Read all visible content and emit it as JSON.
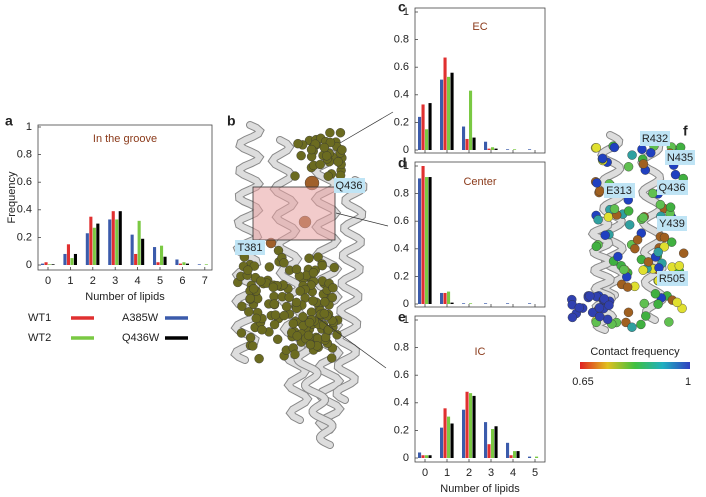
{
  "chart_data": [
    {
      "type": "bar",
      "panel": "a",
      "title": "In the groove",
      "xlabel": "Number of lipids",
      "ylabel": "Frequency",
      "categories": [
        "0",
        "1",
        "2",
        "3",
        "4",
        "5",
        "6",
        "7"
      ],
      "ylim": [
        0,
        1
      ],
      "yticks": [
        0,
        0.2,
        0.4,
        0.6,
        0.8,
        1
      ],
      "legend": true,
      "series": [
        {
          "name": "A385W",
          "color": "#3b5bab",
          "values": [
            0.01,
            0.08,
            0.23,
            0.33,
            0.22,
            0.13,
            0.04,
            0.005
          ]
        },
        {
          "name": "WT1",
          "color": "#e03030",
          "values": [
            0.02,
            0.15,
            0.35,
            0.39,
            0.08,
            0.02,
            0.01,
            0
          ]
        },
        {
          "name": "WT2",
          "color": "#7ac943",
          "values": [
            0.005,
            0.05,
            0.27,
            0.33,
            0.32,
            0.14,
            0.02,
            0.005
          ]
        },
        {
          "name": "Q436W",
          "color": "#000000",
          "values": [
            0.005,
            0.08,
            0.3,
            0.39,
            0.19,
            0.06,
            0.01,
            0
          ]
        }
      ]
    },
    {
      "type": "bar",
      "panel": "c",
      "title": "EC",
      "categories": [
        null,
        null,
        null,
        null,
        null,
        null
      ],
      "ylim": [
        0,
        1
      ],
      "yticks": [
        0,
        0.2,
        0.4,
        0.6,
        0.8,
        1
      ],
      "series": [
        {
          "name": "A385W",
          "color": "#3b5bab",
          "values": [
            0.24,
            0.51,
            0.17,
            0.06,
            0.005,
            0.005
          ]
        },
        {
          "name": "WT1",
          "color": "#e03030",
          "values": [
            0.33,
            0.67,
            0.08,
            0.01,
            0,
            0
          ]
        },
        {
          "name": "WT2",
          "color": "#7ac943",
          "values": [
            0.15,
            0.53,
            0.43,
            0.02,
            0.005,
            0
          ]
        },
        {
          "name": "Q436W",
          "color": "#000000",
          "values": [
            0.34,
            0.56,
            0.09,
            0.01,
            0,
            0
          ]
        }
      ]
    },
    {
      "type": "bar",
      "panel": "d",
      "title": "Center",
      "categories": [
        null,
        null,
        null,
        null,
        null,
        null
      ],
      "ylim": [
        0,
        1
      ],
      "yticks": [
        0,
        0.2,
        0.4,
        0.6,
        0.8,
        1
      ],
      "series": [
        {
          "name": "A385W",
          "color": "#3b5bab",
          "values": [
            0.91,
            0.08,
            0.005,
            0.005,
            0.005,
            0.005
          ]
        },
        {
          "name": "WT1",
          "color": "#e03030",
          "values": [
            1,
            0.08,
            0,
            0,
            0,
            0
          ]
        },
        {
          "name": "WT2",
          "color": "#7ac943",
          "values": [
            0.92,
            0.09,
            0.005,
            0,
            0,
            0
          ]
        },
        {
          "name": "Q436W",
          "color": "#000000",
          "values": [
            0.92,
            0.01,
            0,
            0,
            0,
            0
          ]
        }
      ]
    },
    {
      "type": "bar",
      "panel": "e",
      "title": "IC",
      "xlabel": "Number of lipids",
      "categories": [
        "0",
        "1",
        "2",
        "3",
        "4",
        "5"
      ],
      "ylim": [
        0,
        1
      ],
      "yticks": [
        0,
        0.2,
        0.4,
        0.6,
        0.8,
        1
      ],
      "series": [
        {
          "name": "A385W",
          "color": "#3b5bab",
          "values": [
            0.04,
            0.22,
            0.35,
            0.26,
            0.11,
            0.01
          ]
        },
        {
          "name": "WT1",
          "color": "#e03030",
          "values": [
            0.02,
            0.36,
            0.48,
            0.1,
            0.02,
            0
          ]
        },
        {
          "name": "WT2",
          "color": "#7ac943",
          "values": [
            0.02,
            0.3,
            0.47,
            0.21,
            0.05,
            0.01
          ]
        },
        {
          "name": "Q436W",
          "color": "#000000",
          "values": [
            0.02,
            0.25,
            0.45,
            0.23,
            0.05,
            0
          ]
        }
      ]
    }
  ],
  "images": {
    "b": {
      "panel": "b",
      "labels": [
        "Q436",
        "T381"
      ]
    },
    "f": {
      "panel": "f",
      "labels": [
        "R432",
        "N435",
        "E313",
        "Q436",
        "Y439",
        "R505"
      ],
      "colorbar": {
        "title": "Contact frequency",
        "min_label": "0.65",
        "max_label": "1"
      }
    }
  }
}
